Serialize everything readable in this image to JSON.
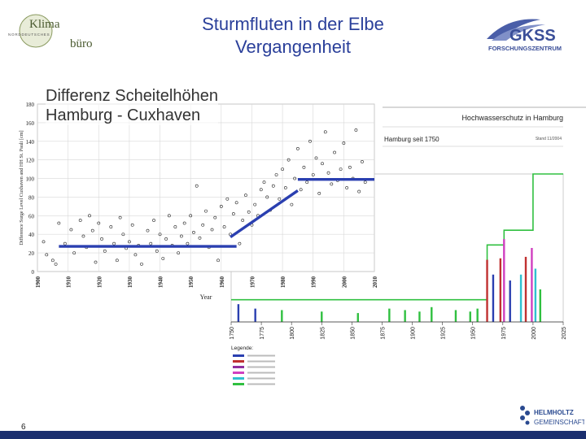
{
  "slide": {
    "title_line1": "Sturmfluten in der Elbe",
    "title_line2": "Vergangenheit",
    "subtitle_line1": "Differenz Scheitelhöhen",
    "subtitle_line2": "Hamburg - Cuxhaven",
    "page_number": "6",
    "title_color": "#2a3f9a"
  },
  "logos": {
    "klima_top": "Klima",
    "klima_bottom": "büro",
    "klima_small": "NORDDEUTSCHES",
    "gkss_name": "GKSS",
    "gkss_sub": "FORSCHUNGSZENTRUM",
    "helmholtz_line1": "HELMHOLTZ",
    "helmholtz_line2": "GEMEINSCHAFT"
  },
  "chart_data": [
    {
      "type": "scatter",
      "ylabel": "Difference Surge Level Cuxhaven and HH St. Pauli [cm]",
      "xlabel": "Year",
      "x_ticks": [
        "1900",
        "1910",
        "1920",
        "1930",
        "1940",
        "1950",
        "1960",
        "1970",
        "1980",
        "1990",
        "2000",
        "2010"
      ],
      "y_ticks": [
        0,
        20,
        40,
        60,
        80,
        100,
        120,
        140,
        160,
        180
      ],
      "xlim": [
        1900,
        2010
      ],
      "ylim": [
        0,
        180
      ],
      "grid": true,
      "series": [
        {
          "points": [
            [
              1902,
              32
            ],
            [
              1903,
              18
            ],
            [
              1905,
              12
            ],
            [
              1906,
              8
            ],
            [
              1907,
              52
            ],
            [
              1909,
              30
            ],
            [
              1911,
              45
            ],
            [
              1912,
              20
            ],
            [
              1914,
              55
            ],
            [
              1915,
              38
            ],
            [
              1916,
              26
            ],
            [
              1917,
              60
            ],
            [
              1918,
              44
            ],
            [
              1919,
              10
            ],
            [
              1920,
              52
            ],
            [
              1921,
              35
            ],
            [
              1922,
              22
            ],
            [
              1924,
              48
            ],
            [
              1925,
              30
            ],
            [
              1926,
              12
            ],
            [
              1927,
              58
            ],
            [
              1928,
              40
            ],
            [
              1929,
              25
            ],
            [
              1930,
              32
            ],
            [
              1931,
              50
            ],
            [
              1932,
              18
            ],
            [
              1933,
              28
            ],
            [
              1934,
              8
            ],
            [
              1936,
              44
            ],
            [
              1937,
              30
            ],
            [
              1938,
              55
            ],
            [
              1939,
              22
            ],
            [
              1940,
              40
            ],
            [
              1941,
              14
            ],
            [
              1942,
              35
            ],
            [
              1943,
              60
            ],
            [
              1944,
              28
            ],
            [
              1945,
              48
            ],
            [
              1946,
              20
            ],
            [
              1947,
              38
            ],
            [
              1948,
              52
            ],
            [
              1949,
              30
            ],
            [
              1950,
              60
            ],
            [
              1951,
              42
            ],
            [
              1952,
              92
            ],
            [
              1953,
              36
            ],
            [
              1954,
              50
            ],
            [
              1955,
              65
            ],
            [
              1956,
              26
            ],
            [
              1957,
              45
            ],
            [
              1958,
              58
            ],
            [
              1959,
              12
            ],
            [
              1960,
              70
            ],
            [
              1961,
              48
            ],
            [
              1962,
              78
            ],
            [
              1963,
              40
            ],
            [
              1964,
              62
            ],
            [
              1965,
              74
            ],
            [
              1966,
              30
            ],
            [
              1967,
              55
            ],
            [
              1968,
              82
            ],
            [
              1969,
              64
            ],
            [
              1970,
              50
            ],
            [
              1971,
              72
            ],
            [
              1972,
              60
            ],
            [
              1973,
              88
            ],
            [
              1974,
              96
            ],
            [
              1975,
              80
            ],
            [
              1976,
              66
            ],
            [
              1977,
              92
            ],
            [
              1978,
              104
            ],
            [
              1979,
              78
            ],
            [
              1980,
              110
            ],
            [
              1981,
              90
            ],
            [
              1982,
              120
            ],
            [
              1983,
              72
            ],
            [
              1984,
              100
            ],
            [
              1985,
              132
            ],
            [
              1986,
              88
            ],
            [
              1987,
              112
            ],
            [
              1988,
              96
            ],
            [
              1989,
              140
            ],
            [
              1990,
              104
            ],
            [
              1991,
              122
            ],
            [
              1992,
              84
            ],
            [
              1993,
              116
            ],
            [
              1994,
              150
            ],
            [
              1995,
              106
            ],
            [
              1996,
              94
            ],
            [
              1997,
              128
            ],
            [
              1998,
              98
            ],
            [
              1999,
              110
            ],
            [
              2000,
              138
            ],
            [
              2001,
              90
            ],
            [
              2002,
              112
            ],
            [
              2003,
              100
            ],
            [
              2004,
              152
            ],
            [
              2005,
              86
            ],
            [
              2006,
              118
            ],
            [
              2007,
              96
            ]
          ]
        }
      ],
      "trend_segments": [
        {
          "x": [
            1907,
            1965
          ],
          "y": [
            27,
            27
          ]
        },
        {
          "x": [
            1963,
            1985
          ],
          "y": [
            37,
            87
          ]
        },
        {
          "x": [
            1985,
            2010
          ],
          "y": [
            99,
            99
          ]
        }
      ],
      "trend_color": "#2a3fb0"
    },
    {
      "type": "bar",
      "title": "Hochwasserschutz in Hamburg",
      "subtitle": "Hamburg seit 1750",
      "note": "Stand 11/2004",
      "x_ticks": [
        "1750",
        "1775",
        "1800",
        "1825",
        "1850",
        "1875",
        "1900",
        "1925",
        "1950",
        "1975",
        "2000",
        "2025"
      ],
      "xlim": [
        1750,
        2025
      ],
      "legend_title": "Legende:",
      "legend_colors": [
        "#2a3fb0",
        "#c03030",
        "#9030a0",
        "#d040c0",
        "#30c0d0",
        "#30c040"
      ],
      "step_line_color": "#30c040",
      "step_line": [
        [
          1750,
          0.15
        ],
        [
          1962,
          0.15
        ],
        [
          1962,
          0.52
        ],
        [
          1976,
          0.52
        ],
        [
          1976,
          0.62
        ],
        [
          2000,
          0.62
        ],
        [
          2000,
          1.0
        ],
        [
          2025,
          1.0
        ]
      ],
      "bars": [
        {
          "x": 1756,
          "h": 0.12,
          "c": "#2a3fb0"
        },
        {
          "x": 1770,
          "h": 0.09,
          "c": "#2a3fb0"
        },
        {
          "x": 1792,
          "h": 0.08,
          "c": "#30c040"
        },
        {
          "x": 1825,
          "h": 0.07,
          "c": "#30c040"
        },
        {
          "x": 1855,
          "h": 0.06,
          "c": "#30c040"
        },
        {
          "x": 1881,
          "h": 0.09,
          "c": "#30c040"
        },
        {
          "x": 1894,
          "h": 0.08,
          "c": "#30c040"
        },
        {
          "x": 1906,
          "h": 0.07,
          "c": "#30c040"
        },
        {
          "x": 1916,
          "h": 0.1,
          "c": "#30c040"
        },
        {
          "x": 1936,
          "h": 0.08,
          "c": "#30c040"
        },
        {
          "x": 1948,
          "h": 0.07,
          "c": "#30c040"
        },
        {
          "x": 1954,
          "h": 0.09,
          "c": "#30c040"
        },
        {
          "x": 1962,
          "h": 0.42,
          "c": "#c03030"
        },
        {
          "x": 1967,
          "h": 0.32,
          "c": "#2a3fb0"
        },
        {
          "x": 1973,
          "h": 0.43,
          "c": "#c03030"
        },
        {
          "x": 1976,
          "h": 0.56,
          "c": "#d040c0"
        },
        {
          "x": 1981,
          "h": 0.28,
          "c": "#2a3fb0"
        },
        {
          "x": 1990,
          "h": 0.32,
          "c": "#30c0d0"
        },
        {
          "x": 1994,
          "h": 0.44,
          "c": "#c03030"
        },
        {
          "x": 1999,
          "h": 0.5,
          "c": "#d040c0"
        },
        {
          "x": 2002,
          "h": 0.36,
          "c": "#30c0d0"
        },
        {
          "x": 2006,
          "h": 0.22,
          "c": "#30c040"
        }
      ]
    }
  ]
}
